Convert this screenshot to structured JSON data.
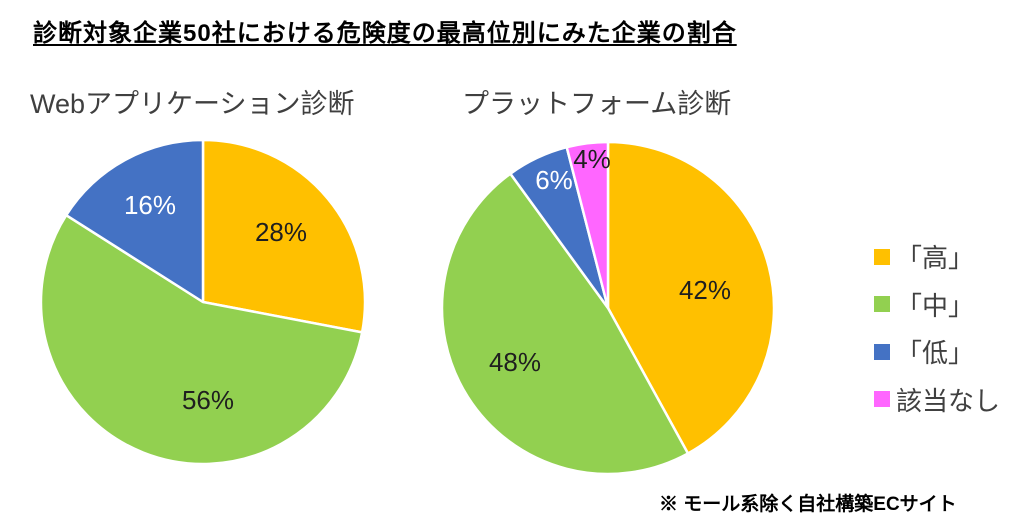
{
  "page": {
    "title": "診断対象企業50社における危険度の最高位別にみた企業の割合",
    "footnote": "※ モール系除く自社構築ECサイト",
    "background_color": "#ffffff"
  },
  "colors": {
    "high": "#FFC000",
    "mid": "#92D050",
    "low": "#4472C4",
    "none": "#FF66FF",
    "slice_border": "#ffffff",
    "label_dark": "#1f1f1f",
    "label_light": "#ffffff",
    "text_gray": "#404040"
  },
  "legend": {
    "position": "right",
    "items": [
      {
        "label": "「高」",
        "color": "#FFC000"
      },
      {
        "label": "「中」",
        "color": "#92D050"
      },
      {
        "label": "「低」",
        "color": "#4472C4"
      },
      {
        "label": "該当なし",
        "color": "#FF66FF"
      }
    ]
  },
  "chart_data": [
    {
      "type": "pie",
      "title": "Webアプリケーション診断",
      "unit": "%",
      "start_angle_deg": 0,
      "clockwise": true,
      "categories": [
        "「高」",
        "「中」",
        "「低」"
      ],
      "values": [
        28,
        56,
        16
      ],
      "slices": [
        {
          "category": "「高」",
          "value": 28,
          "color": "#FFC000",
          "label": "28%",
          "label_color": "#1f1f1f",
          "label_pos": [
            243,
            95
          ]
        },
        {
          "category": "「中」",
          "value": 56,
          "color": "#92D050",
          "label": "56%",
          "label_color": "#1f1f1f",
          "label_pos": [
            170,
            263
          ]
        },
        {
          "category": "「低」",
          "value": 16,
          "color": "#4472C4",
          "label": "16%",
          "label_color": "#ffffff",
          "label_pos": [
            112,
            68
          ]
        }
      ]
    },
    {
      "type": "pie",
      "title": "プラットフォーム診断",
      "unit": "%",
      "start_angle_deg": 0,
      "clockwise": true,
      "categories": [
        "「高」",
        "「中」",
        "「低」",
        "該当なし"
      ],
      "values": [
        42,
        48,
        6,
        4
      ],
      "slices": [
        {
          "category": "「高」",
          "value": 42,
          "color": "#FFC000",
          "label": "42%",
          "label_color": "#1f1f1f",
          "label_pos": [
            267,
            152
          ]
        },
        {
          "category": "「中」",
          "value": 48,
          "color": "#92D050",
          "label": "48%",
          "label_color": "#1f1f1f",
          "label_pos": [
            77,
            224
          ]
        },
        {
          "category": "「低」",
          "value": 6,
          "color": "#4472C4",
          "label": "6%",
          "label_color": "#ffffff",
          "label_pos": [
            116,
            42
          ]
        },
        {
          "category": "該当なし",
          "value": 4,
          "color": "#FF66FF",
          "label": "4%",
          "label_color": "#1f1f1f",
          "label_pos": [
            154,
            21
          ]
        }
      ]
    }
  ]
}
